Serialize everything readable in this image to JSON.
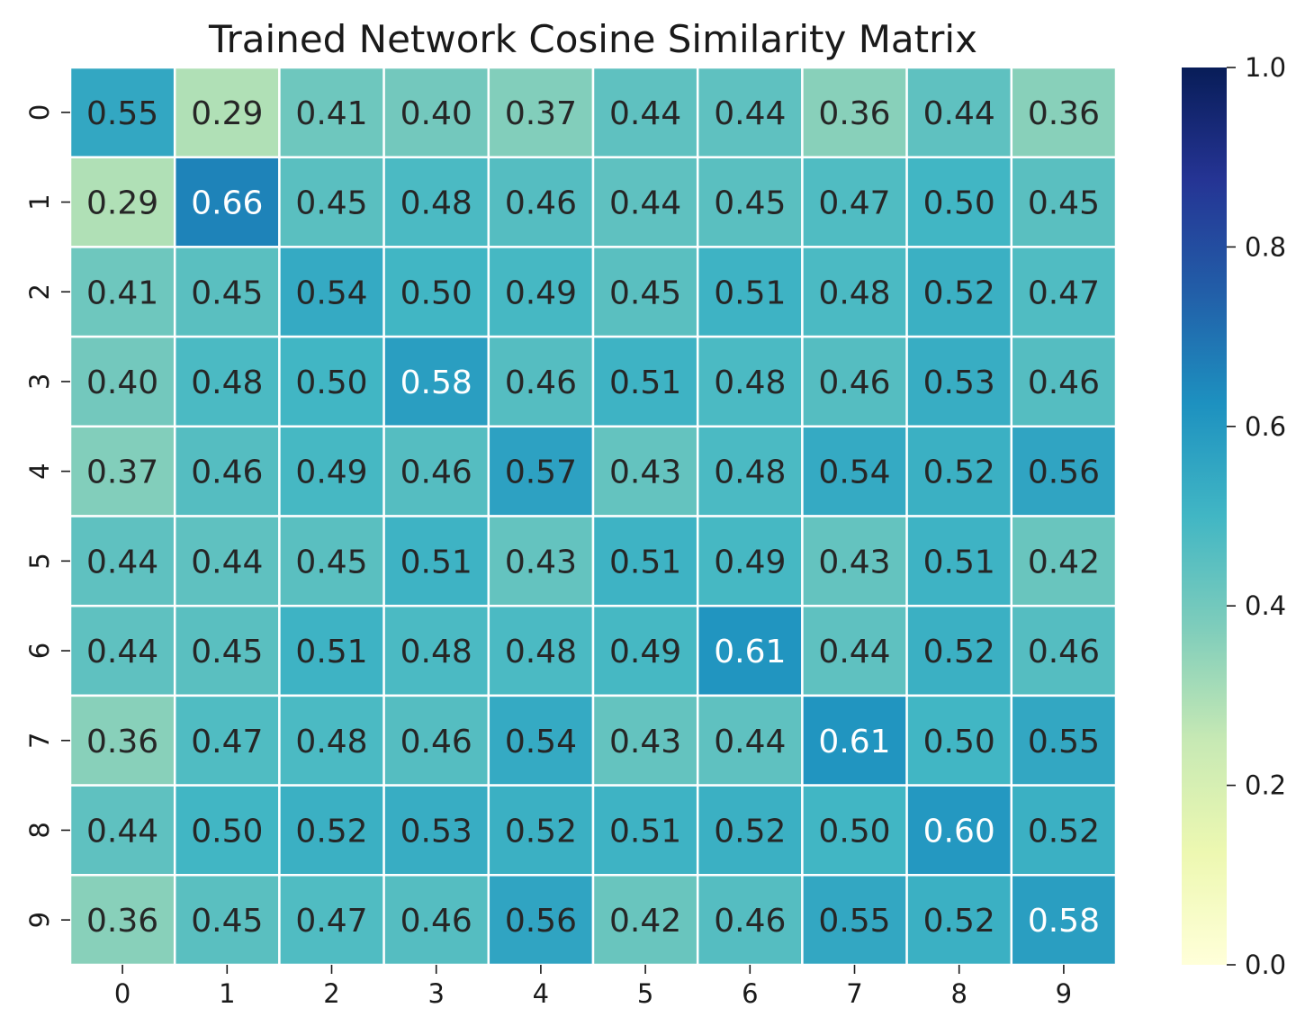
{
  "chart_data": {
    "type": "heatmap",
    "title": "Trained Network Cosine Similarity Matrix",
    "xlabel": "",
    "ylabel": "",
    "x_categories": [
      "0",
      "1",
      "2",
      "3",
      "4",
      "5",
      "6",
      "7",
      "8",
      "9"
    ],
    "y_categories": [
      "0",
      "1",
      "2",
      "3",
      "4",
      "5",
      "6",
      "7",
      "8",
      "9"
    ],
    "values": [
      [
        0.55,
        0.29,
        0.41,
        0.4,
        0.37,
        0.44,
        0.44,
        0.36,
        0.44,
        0.36
      ],
      [
        0.29,
        0.66,
        0.45,
        0.48,
        0.46,
        0.44,
        0.45,
        0.47,
        0.5,
        0.45
      ],
      [
        0.41,
        0.45,
        0.54,
        0.5,
        0.49,
        0.45,
        0.51,
        0.48,
        0.52,
        0.47
      ],
      [
        0.4,
        0.48,
        0.5,
        0.58,
        0.46,
        0.51,
        0.48,
        0.46,
        0.53,
        0.46
      ],
      [
        0.37,
        0.46,
        0.49,
        0.46,
        0.57,
        0.43,
        0.48,
        0.54,
        0.52,
        0.56
      ],
      [
        0.44,
        0.44,
        0.45,
        0.51,
        0.43,
        0.51,
        0.49,
        0.43,
        0.51,
        0.42
      ],
      [
        0.44,
        0.45,
        0.51,
        0.48,
        0.48,
        0.49,
        0.61,
        0.44,
        0.52,
        0.46
      ],
      [
        0.36,
        0.47,
        0.48,
        0.46,
        0.54,
        0.43,
        0.44,
        0.61,
        0.5,
        0.55
      ],
      [
        0.44,
        0.5,
        0.52,
        0.53,
        0.52,
        0.51,
        0.52,
        0.5,
        0.6,
        0.52
      ],
      [
        0.36,
        0.45,
        0.47,
        0.46,
        0.56,
        0.42,
        0.46,
        0.55,
        0.52,
        0.58
      ]
    ],
    "value_range": [
      0.0,
      1.0
    ],
    "colormap": "YlGnBu",
    "colorbar": {
      "ticks": [
        "0.0",
        "0.2",
        "0.4",
        "0.6",
        "0.8",
        "1.0"
      ],
      "placement": "right"
    },
    "text_colors": {
      "dark": "#262626",
      "light": "#ffffff"
    }
  }
}
